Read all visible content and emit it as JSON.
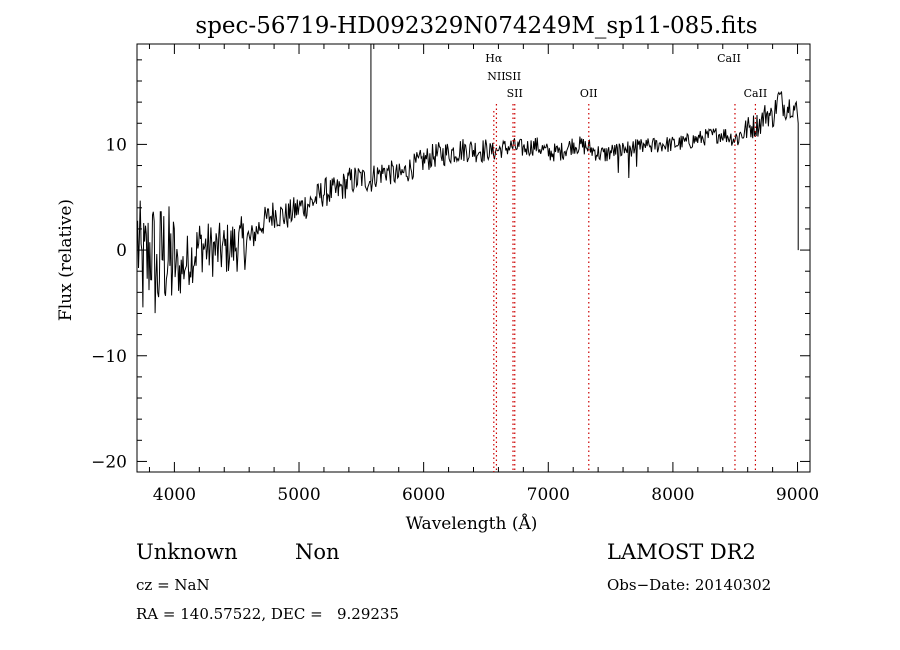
{
  "chart_data": {
    "type": "line",
    "title": "spec-56719-HD092329N074249M_sp11-085.fits",
    "xlabel": "Wavelength (Å)",
    "ylabel": "Flux (relative)",
    "xlim": [
      3700,
      9100
    ],
    "ylim": [
      -21,
      19.5
    ],
    "x_ticks": [
      4000,
      5000,
      6000,
      7000,
      8000,
      9000
    ],
    "x_tick_labels": [
      "4000",
      "5000",
      "6000",
      "7000",
      "8000",
      "9000"
    ],
    "y_ticks": [
      -20,
      -10,
      0,
      10
    ],
    "y_tick_labels": [
      "−20",
      "−10",
      "0",
      "10"
    ],
    "grid": false,
    "line_color": "#000000",
    "marker_color": "#cc0000",
    "spectrum": {
      "x": [
        3700,
        3740,
        3780,
        3820,
        3860,
        3900,
        3950,
        4000,
        4050,
        4100,
        4150,
        4200,
        4300,
        4400,
        4500,
        4600,
        4700,
        4800,
        4900,
        5000,
        5100,
        5200,
        5300,
        5400,
        5500,
        5577,
        5600,
        5700,
        5800,
        5900,
        6000,
        6100,
        6200,
        6300,
        6400,
        6500,
        6563,
        6600,
        6700,
        6800,
        6900,
        7000,
        7100,
        7200,
        7300,
        7400,
        7450,
        7500,
        7600,
        7700,
        7800,
        7900,
        8000,
        8100,
        8200,
        8300,
        8400,
        8500,
        8550,
        8600,
        8700,
        8750,
        8800,
        8850,
        8900,
        8950,
        9000
      ],
      "y": [
        1.5,
        -2,
        -1,
        0.5,
        -3,
        0,
        -1,
        -1.5,
        -2,
        -1,
        -0.5,
        0.5,
        0,
        0,
        0.5,
        0.8,
        2.5,
        3.5,
        3.2,
        4,
        4.5,
        5.5,
        5.5,
        6.5,
        6.8,
        6.5,
        7,
        7.5,
        7,
        7.8,
        8.5,
        9,
        9.2,
        9.5,
        9.5,
        9.4,
        9.3,
        9.5,
        9.8,
        9.6,
        9.9,
        9.2,
        9.3,
        10,
        9.8,
        9.2,
        9.0,
        9.3,
        9.5,
        9.7,
        9.8,
        10,
        10,
        10.2,
        10.5,
        10.8,
        11,
        10.5,
        11,
        11.5,
        12,
        13,
        12.5,
        14.5,
        13.5,
        13.8,
        13
      ]
    },
    "sky_spike": {
      "x": 5577,
      "y_top": 19.5
    },
    "line_markers": [
      {
        "label": "Hα",
        "wavelength": 6563
      },
      {
        "label": "NII",
        "wavelength": 6584
      },
      {
        "label": "SII",
        "wavelength": 6717
      },
      {
        "label": "SII",
        "wavelength": 6731
      },
      {
        "label": "OII",
        "wavelength": 7325
      },
      {
        "label": "CaII",
        "wavelength": 8498
      },
      {
        "label": "CaII",
        "wavelength": 8662
      }
    ]
  },
  "info": {
    "class_label": "Unknown",
    "subclass_label": "Non",
    "survey": "LAMOST DR2",
    "cz": "cz = NaN",
    "obs_date": "Obs−Date: 20140302",
    "coords": "RA = 140.57522, DEC =   9.29235"
  }
}
